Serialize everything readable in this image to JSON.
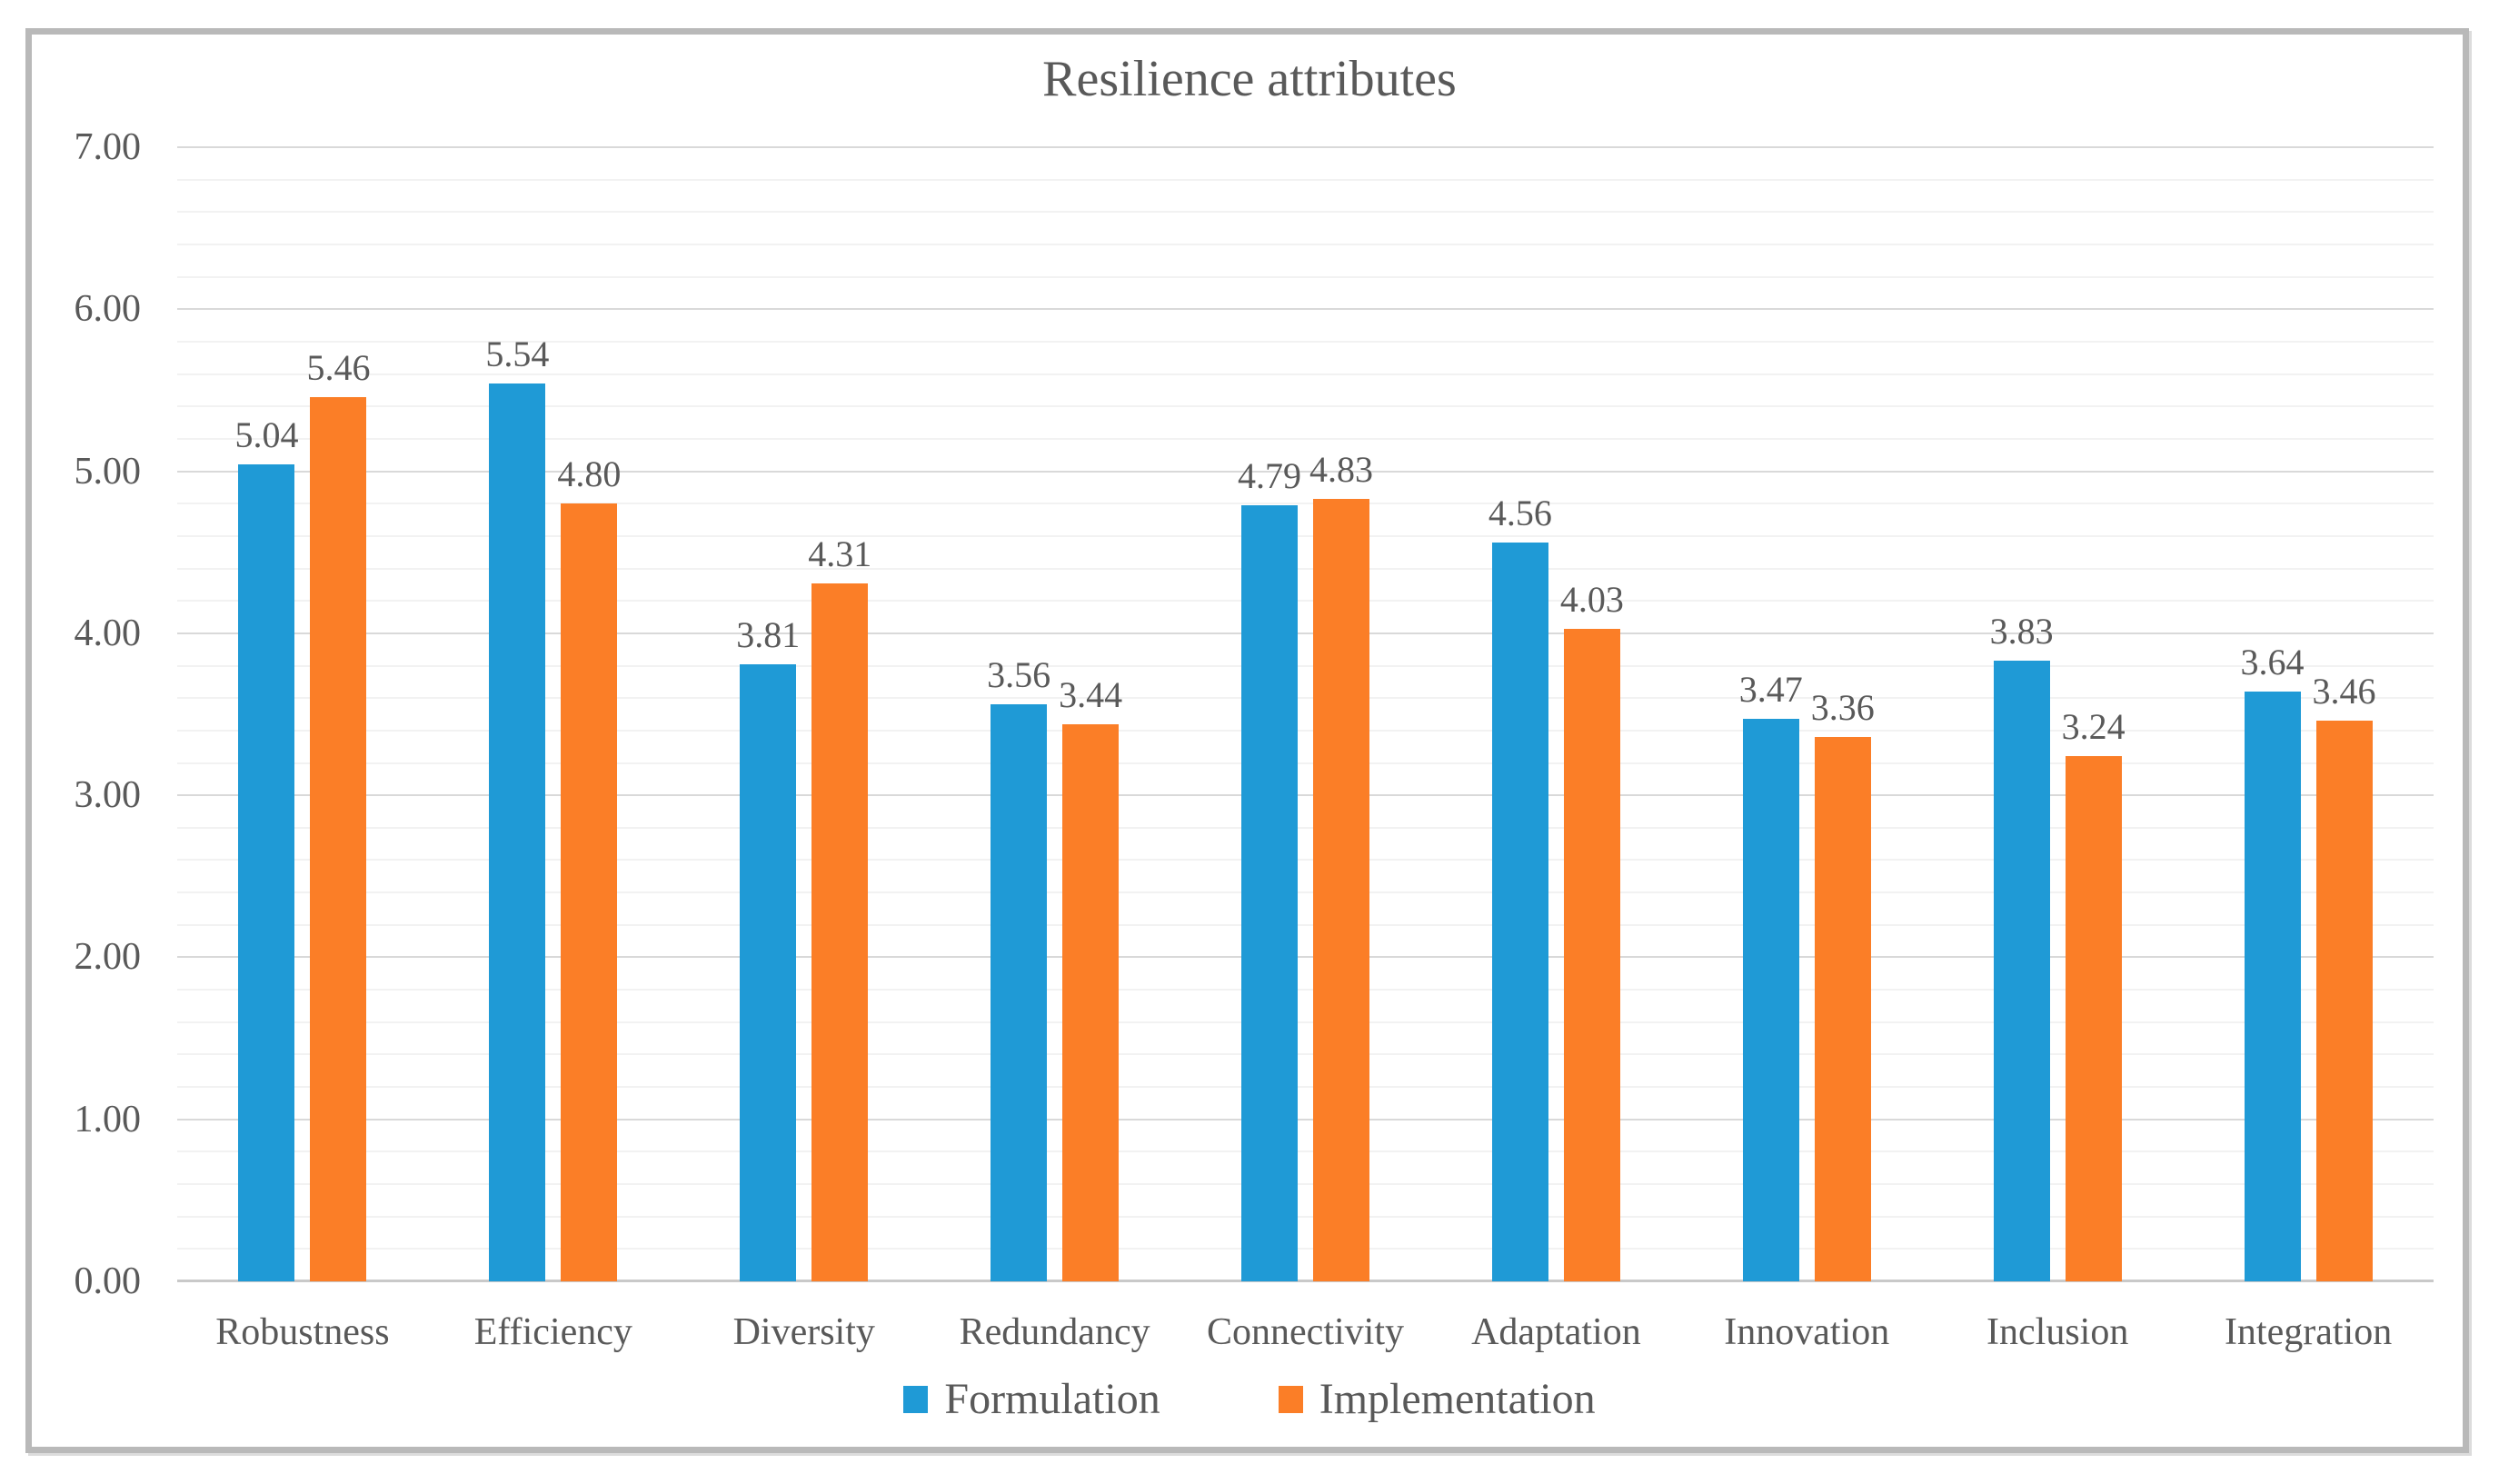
{
  "chart_data": {
    "type": "bar",
    "title": "Resilience attributes",
    "categories": [
      "Robustness",
      "Efficiency",
      "Diversity",
      "Redundancy",
      "Connectivity",
      "Adaptation",
      "Innovation",
      "Inclusion",
      "Integration"
    ],
    "series": [
      {
        "name": "Formulation",
        "color": "#1F9AD6",
        "values": [
          5.04,
          5.54,
          3.81,
          3.56,
          4.79,
          4.56,
          3.47,
          3.83,
          3.64
        ],
        "labels": [
          "5.04",
          "5.54",
          "3.81",
          "3.56",
          "4.79",
          "4.56",
          "3.47",
          "3.83",
          "3.64"
        ]
      },
      {
        "name": "Implementation",
        "color": "#FB7E27",
        "values": [
          5.46,
          4.8,
          4.31,
          3.44,
          4.83,
          4.03,
          3.36,
          3.24,
          3.46
        ],
        "labels": [
          "5.46",
          "4.80",
          "4.31",
          "3.44",
          "4.83",
          "4.03",
          "3.36",
          "3.24",
          "3.46"
        ]
      }
    ],
    "ylim": [
      0,
      7
    ],
    "y_ticks": [
      {
        "value": 0,
        "label": "0.00"
      },
      {
        "value": 1,
        "label": "1.00"
      },
      {
        "value": 2,
        "label": "2.00"
      },
      {
        "value": 3,
        "label": "3.00"
      },
      {
        "value": 4,
        "label": "4.00"
      },
      {
        "value": 5,
        "label": "5.00"
      },
      {
        "value": 6,
        "label": "6.00"
      },
      {
        "value": 7,
        "label": "7.00"
      }
    ],
    "grid": {
      "minor_step": 0.2,
      "major_step": 1.0,
      "shown": true
    },
    "legend_position": "bottom",
    "colors": {
      "text": "#595959",
      "gridline_minor": "#f2f2f2",
      "gridline_major": "#d9d9d9",
      "axis_line": "#c9c9c9",
      "frame_border": "#b9b9b9",
      "background": "#ffffff"
    }
  }
}
